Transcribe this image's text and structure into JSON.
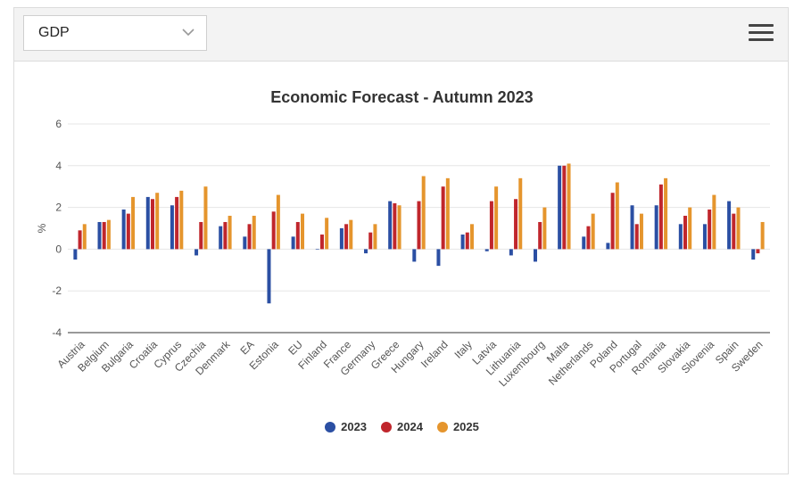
{
  "selector": {
    "value": "GDP",
    "icon": "chevron-down-icon"
  },
  "menu": {
    "icon": "hamburger-menu-icon"
  },
  "chart_data": {
    "type": "bar",
    "title": "Economic Forecast - Autumn 2023",
    "ylabel": "%",
    "xlabel": "",
    "ylim": [
      -4,
      6
    ],
    "yticks": [
      -4,
      -2,
      0,
      2,
      4,
      6
    ],
    "grid": true,
    "legend_position": "bottom-center",
    "categories": [
      "Austria",
      "Belgium",
      "Bulgaria",
      "Croatia",
      "Cyprus",
      "Czechia",
      "Denmark",
      "EA",
      "Estonia",
      "EU",
      "Finland",
      "France",
      "Germany",
      "Greece",
      "Hungary",
      "Ireland",
      "Italy",
      "Latvia",
      "Lithuania",
      "Luxembourg",
      "Malta",
      "Netherlands",
      "Poland",
      "Portugal",
      "Romania",
      "Slovakia",
      "Slovenia",
      "Spain",
      "Sweden"
    ],
    "series": [
      {
        "name": "2023",
        "color": "#2b4fa3",
        "values": [
          -0.5,
          1.3,
          1.9,
          2.5,
          2.1,
          -0.3,
          1.1,
          0.6,
          -2.6,
          0.6,
          0.0,
          1.0,
          -0.2,
          2.3,
          -0.6,
          -0.8,
          0.7,
          -0.1,
          -0.3,
          -0.6,
          4.0,
          0.6,
          0.3,
          2.1,
          2.1,
          1.2,
          1.2,
          2.3,
          -0.5
        ]
      },
      {
        "name": "2024",
        "color": "#c0262c",
        "values": [
          0.9,
          1.3,
          1.7,
          2.4,
          2.5,
          1.3,
          1.3,
          1.2,
          1.8,
          1.3,
          0.7,
          1.2,
          0.8,
          2.2,
          2.3,
          3.0,
          0.8,
          2.3,
          2.4,
          1.3,
          4.0,
          1.1,
          2.7,
          1.2,
          3.1,
          1.6,
          1.9,
          1.7,
          -0.2
        ]
      },
      {
        "name": "2025",
        "color": "#e5952d",
        "values": [
          1.2,
          1.4,
          2.5,
          2.7,
          2.8,
          3.0,
          1.6,
          1.6,
          2.6,
          1.7,
          1.5,
          1.4,
          1.2,
          2.1,
          3.5,
          3.4,
          1.2,
          3.0,
          3.4,
          2.0,
          4.1,
          1.7,
          3.2,
          1.7,
          3.4,
          2.0,
          2.6,
          2.0,
          1.3
        ]
      }
    ]
  }
}
